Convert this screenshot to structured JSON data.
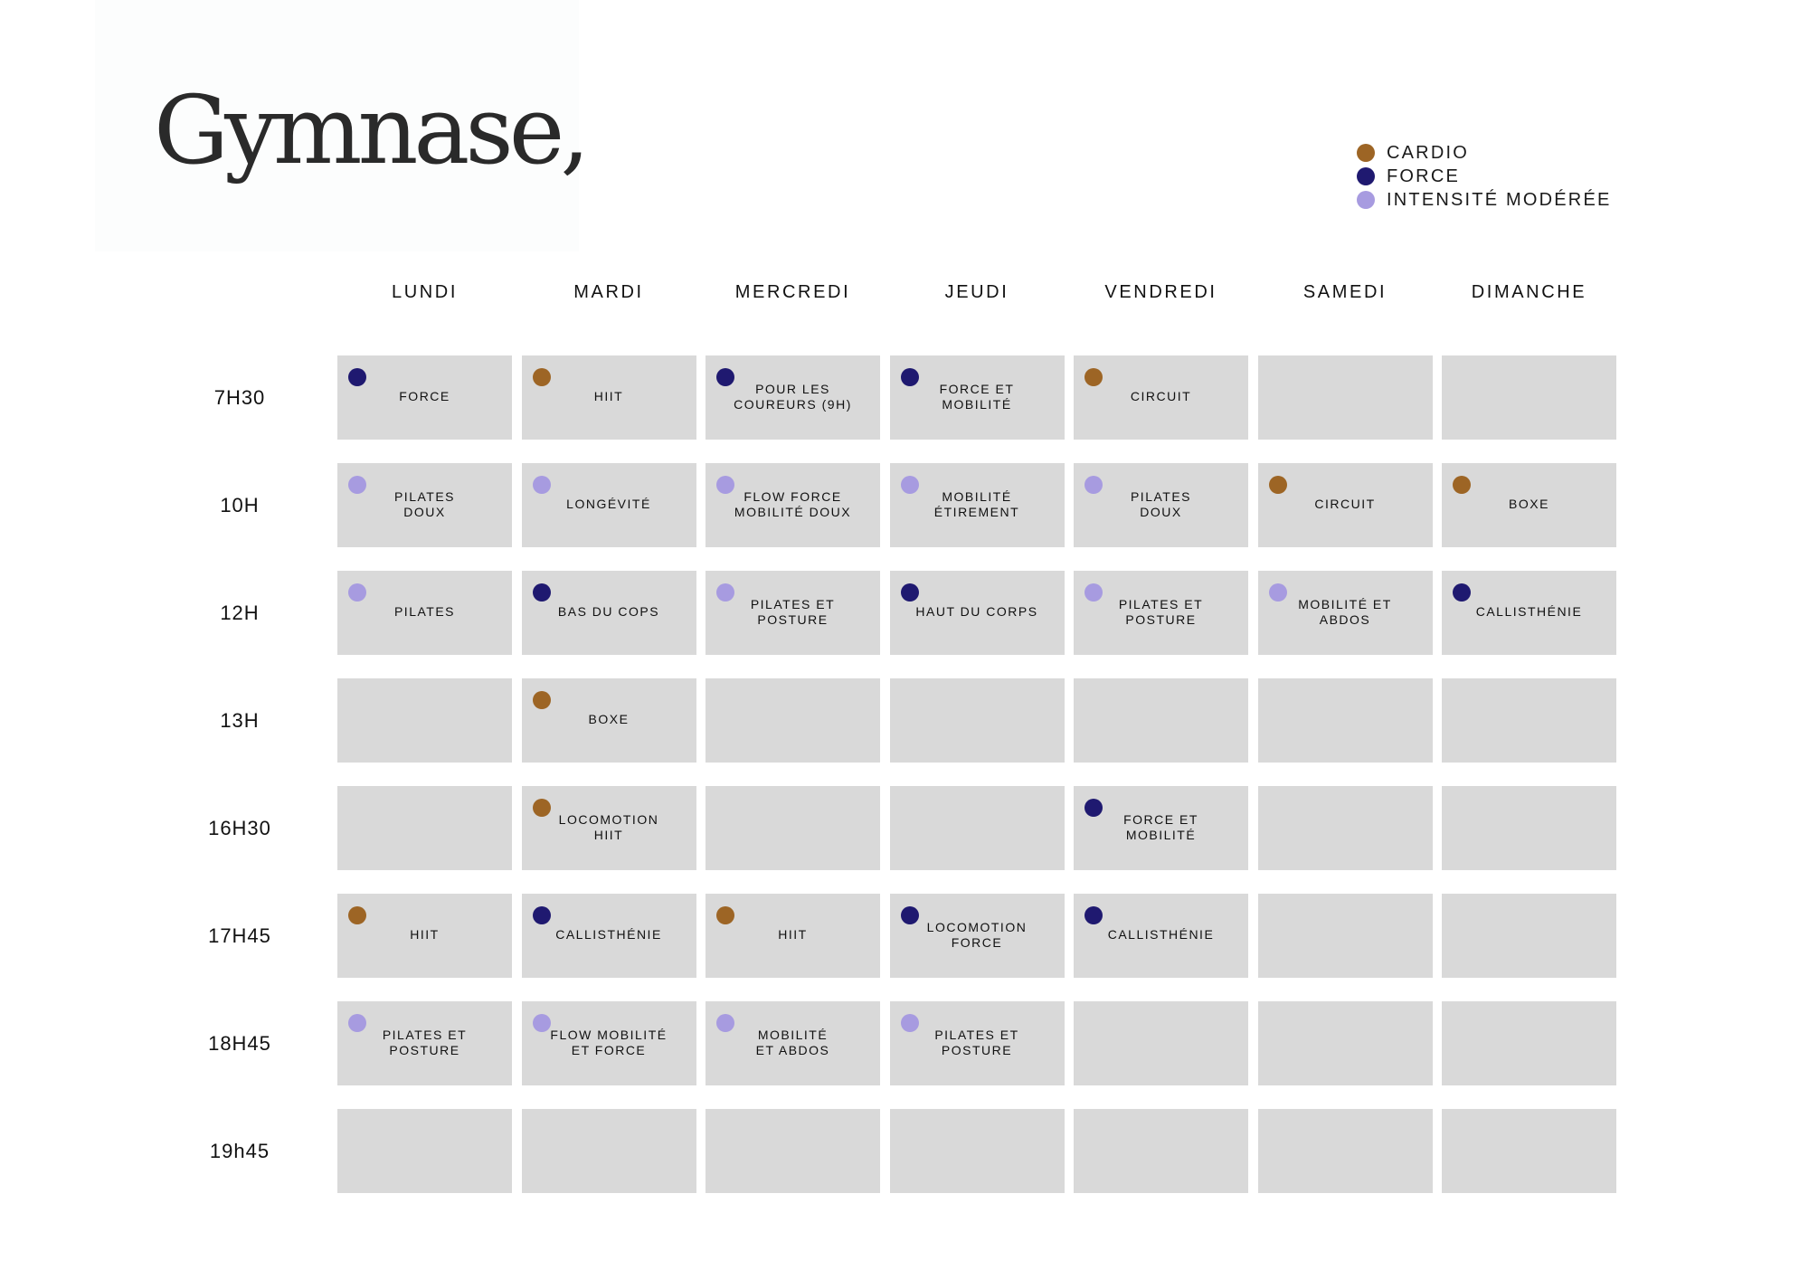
{
  "title": "Gymnase,",
  "legend": [
    {
      "key": "cardio",
      "label": "CARDIO",
      "color": "#9d6525"
    },
    {
      "key": "force",
      "label": "FORCE",
      "color": "#1f1970"
    },
    {
      "key": "moderate",
      "label": "INTENSITÉ MODÉRÉE",
      "color": "#a79be0"
    }
  ],
  "days": [
    "LUNDI",
    "MARDI",
    "MERCREDI",
    "JEUDI",
    "VENDREDI",
    "SAMEDI",
    "DIMANCHE"
  ],
  "times": [
    "7H30",
    "10H",
    "12H",
    "13H",
    "16H30",
    "17H45",
    "18H45",
    "19h45"
  ],
  "schedule": [
    [
      {
        "label": "FORCE",
        "category": "force"
      },
      {
        "label": "HIIT",
        "category": "cardio"
      },
      {
        "label": "POUR LES\nCOUREURS (9H)",
        "category": "force"
      },
      {
        "label": "FORCE ET\nMOBILITÉ",
        "category": "force"
      },
      {
        "label": "CIRCUIT",
        "category": "cardio"
      },
      null,
      null
    ],
    [
      {
        "label": "PILATES\nDOUX",
        "category": "moderate"
      },
      {
        "label": "LONGÉVITÉ",
        "category": "moderate"
      },
      {
        "label": "FLOW FORCE\nMOBILITÉ DOUX",
        "category": "moderate"
      },
      {
        "label": "MOBILITÉ\nÉTIREMENT",
        "category": "moderate"
      },
      {
        "label": "PILATES\nDOUX",
        "category": "moderate"
      },
      {
        "label": "CIRCUIT",
        "category": "cardio"
      },
      {
        "label": "BOXE",
        "category": "cardio"
      }
    ],
    [
      {
        "label": "PILATES",
        "category": "moderate"
      },
      {
        "label": "BAS DU COPS",
        "category": "force"
      },
      {
        "label": "PILATES ET\nPOSTURE",
        "category": "moderate"
      },
      {
        "label": "HAUT DU CORPS",
        "category": "force"
      },
      {
        "label": "PILATES ET\nPOSTURE",
        "category": "moderate"
      },
      {
        "label": "MOBILITÉ ET\nABDOS",
        "category": "moderate"
      },
      {
        "label": "CALLISTHÉNIE",
        "category": "force"
      }
    ],
    [
      null,
      {
        "label": "BOXE",
        "category": "cardio"
      },
      null,
      null,
      null,
      null,
      null
    ],
    [
      null,
      {
        "label": "LOCOMOTION\nHIIT",
        "category": "cardio"
      },
      null,
      null,
      {
        "label": "FORCE ET\nMOBILITÉ",
        "category": "force"
      },
      null,
      null
    ],
    [
      {
        "label": "HIIT",
        "category": "cardio"
      },
      {
        "label": "CALLISTHÉNIE",
        "category": "force"
      },
      {
        "label": "HIIT",
        "category": "cardio"
      },
      {
        "label": "LOCOMOTION\nFORCE",
        "category": "force"
      },
      {
        "label": "CALLISTHÉNIE",
        "category": "force"
      },
      null,
      null
    ],
    [
      {
        "label": "PILATES ET\nPOSTURE",
        "category": "moderate"
      },
      {
        "label": "FLOW MOBILITÉ\nET FORCE",
        "category": "moderate"
      },
      {
        "label": "MOBILITÉ\nET ABDOS",
        "category": "moderate"
      },
      {
        "label": "PILATES ET\nPOSTURE",
        "category": "moderate"
      },
      null,
      null,
      null
    ],
    [
      null,
      null,
      null,
      null,
      null,
      null,
      null
    ]
  ]
}
